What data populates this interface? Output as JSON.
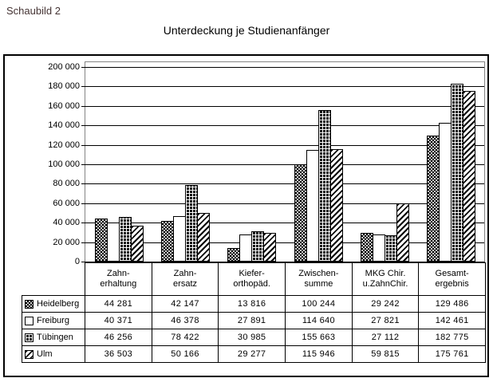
{
  "page": {
    "figure_label": "Schaubild 2",
    "chart_title": "Unterdeckung je Studienanfänger"
  },
  "colors": {
    "background": "#ffffff",
    "text": "#000000",
    "figure_label_text": "#443333",
    "frame_border": "#000000",
    "plot_border": "#848484",
    "grid_line": "#000000",
    "bar_outline": "#000000"
  },
  "chart_data": {
    "type": "bar",
    "title": "Unterdeckung je Studienanfänger",
    "categories": [
      "Zahnerhaltung",
      "Zahnersatz",
      "Kieferorthopäd.",
      "Zwischensumme",
      "MKG Chir. u.ZahnChir.",
      "Gesamtergebnis"
    ],
    "category_labels_two_line": [
      [
        "Zahn-",
        "erhaltung"
      ],
      [
        "Zahn-",
        "ersatz"
      ],
      [
        "Kiefer-",
        "orthopäd."
      ],
      [
        "Zwischen-",
        "summe"
      ],
      [
        "MKG Chir.",
        "u.ZahnChir."
      ],
      [
        "Gesamt-",
        "ergebnis"
      ]
    ],
    "series": [
      {
        "name": "Heidelberg",
        "pattern": "dots-on-black",
        "values": [
          44281,
          42147,
          13816,
          100244,
          29242,
          129486
        ]
      },
      {
        "name": "Freiburg",
        "pattern": "white",
        "values": [
          40371,
          46378,
          27891,
          114640,
          27821,
          142461
        ]
      },
      {
        "name": "Tübingen",
        "pattern": "grid-on-black",
        "values": [
          46256,
          78422,
          30985,
          155663,
          27112,
          182775
        ]
      },
      {
        "name": "Ulm",
        "pattern": "diagonal-hatch",
        "values": [
          36503,
          50166,
          29277,
          115946,
          59815,
          175761
        ]
      }
    ],
    "ylim": [
      0,
      200000
    ],
    "ytick_interval": 20000,
    "ytick_labels": [
      "0",
      "20 000",
      "40 000",
      "60 000",
      "80 000",
      "100 000",
      "120 000",
      "140 000",
      "160 000",
      "180 000",
      "200 000"
    ],
    "grid": "horizontal",
    "legend_position": "data-table-left-column",
    "number_format": "space-thousands"
  }
}
